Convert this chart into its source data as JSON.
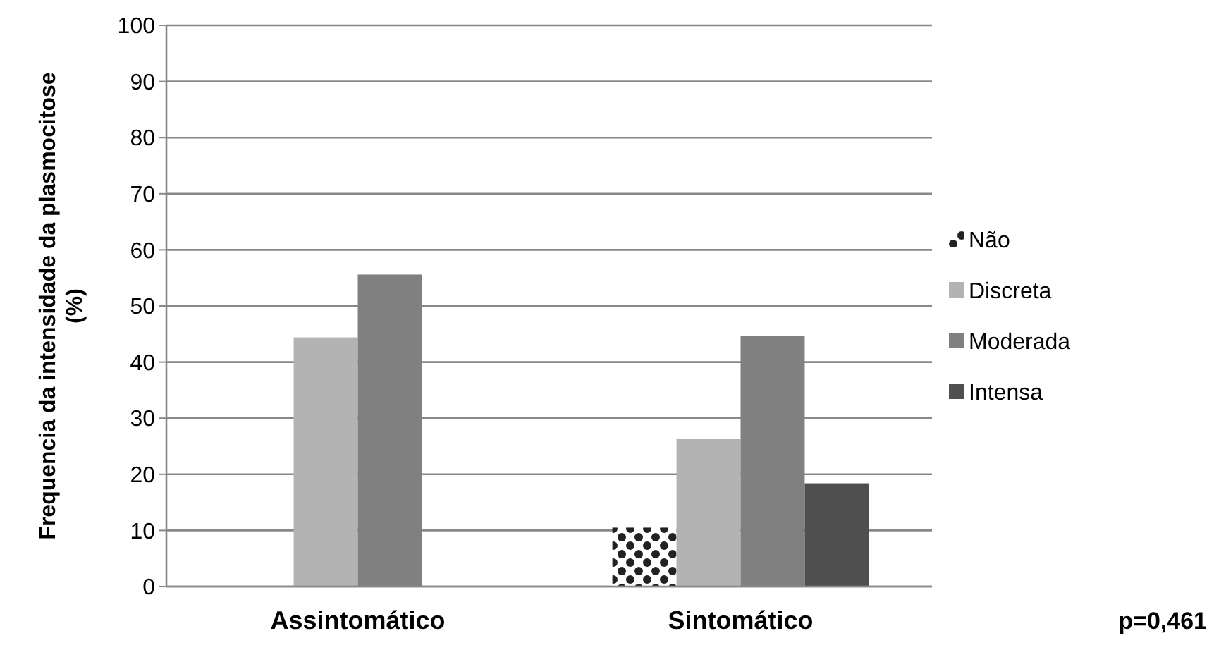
{
  "chart_data": {
    "type": "bar",
    "ylabel": "Frequencia da intensidade da plasmocitose (%)",
    "categories": [
      "Assintomático",
      "Sintomático"
    ],
    "series": [
      {
        "name": "Não",
        "color": "#222222",
        "values": [
          0,
          10.5
        ]
      },
      {
        "name": "Discreta",
        "color": "#b3b3b3",
        "values": [
          44.4,
          26.3
        ]
      },
      {
        "name": "Moderada",
        "color": "#808080",
        "values": [
          55.6,
          44.7
        ]
      },
      {
        "name": "Intensa",
        "color": "#4f4f4f",
        "values": [
          0,
          18.4
        ]
      }
    ],
    "ylim": [
      0,
      100
    ],
    "yticks": [
      0,
      10,
      20,
      30,
      40,
      50,
      60,
      70,
      80,
      90,
      100
    ],
    "grid": "y",
    "legend": "right",
    "annotations": [
      "p=0,461"
    ]
  }
}
